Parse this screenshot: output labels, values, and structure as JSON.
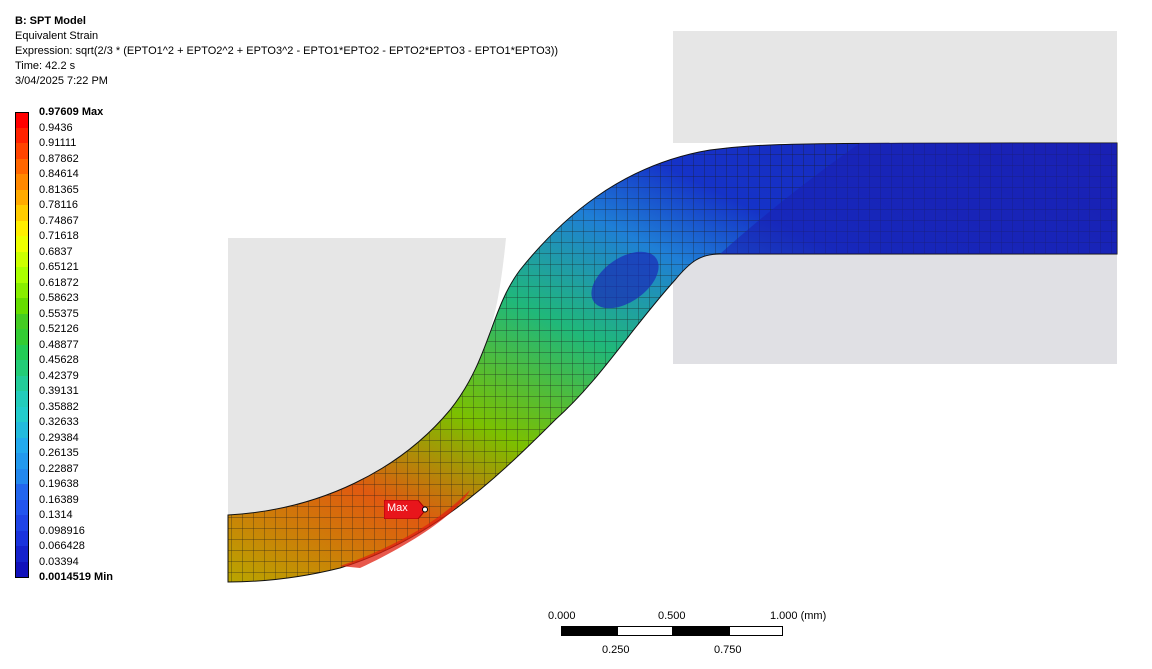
{
  "header": {
    "title": "B: SPT Model",
    "result": "Equivalent Strain",
    "expression": "Expression: sqrt(2/3 * (EPTO1^2 + EPTO2^2 + EPTO3^2 - EPTO1*EPTO2 - EPTO2*EPTO3 - EPTO1*EPTO3))",
    "time": "Time: 42.2 s",
    "date": "3/04/2025 7:22 PM"
  },
  "legend": {
    "labels": [
      "0.97609 Max",
      "0.9436",
      "0.91111",
      "0.87862",
      "0.84614",
      "0.81365",
      "0.78116",
      "0.74867",
      "0.71618",
      "0.6837",
      "0.65121",
      "0.61872",
      "0.58623",
      "0.55375",
      "0.52126",
      "0.48877",
      "0.45628",
      "0.42379",
      "0.39131",
      "0.35882",
      "0.32633",
      "0.29384",
      "0.26135",
      "0.22887",
      "0.19638",
      "0.16389",
      "0.1314",
      "0.098916",
      "0.066428",
      "0.03394",
      "0.0014519 Min"
    ],
    "colors": [
      "#ff0000",
      "#ff2200",
      "#ff4400",
      "#ff6600",
      "#ff8800",
      "#ffaa00",
      "#ffcc00",
      "#ffee00",
      "#eeff00",
      "#ccff00",
      "#aaff00",
      "#88ee00",
      "#66dd00",
      "#44cc22",
      "#33cc33",
      "#22cc55",
      "#22cc77",
      "#22cc99",
      "#22ccbb",
      "#22cccc",
      "#22bbdd",
      "#22aaee",
      "#2299ee",
      "#2288ee",
      "#2266ee",
      "#2255ee",
      "#1f44e6",
      "#1a33dd",
      "#1522cc",
      "#1111bb"
    ]
  },
  "probe": {
    "label": "Max"
  },
  "scale": {
    "ticks_top": [
      "0.000",
      "0.500",
      "1.000 (mm)"
    ],
    "ticks_bottom": [
      "0.250",
      "0.750"
    ]
  },
  "colors": {
    "die": "#e6e6e6",
    "mesh_line": "#1a1a1a"
  }
}
